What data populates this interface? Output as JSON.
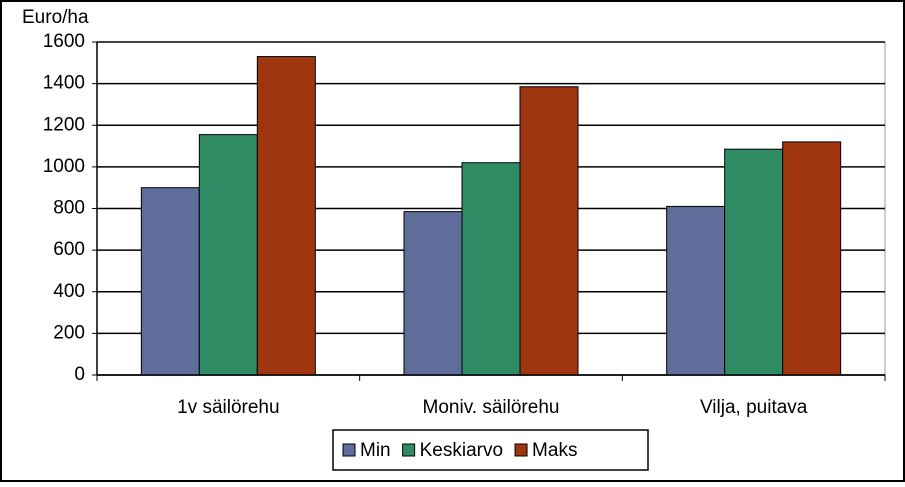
{
  "chart_data": {
    "type": "bar",
    "y_label": "Euro/ha",
    "categories": [
      "1v säilörehu",
      "Moniv. säilörehu",
      "Vilja, puitava"
    ],
    "series": [
      {
        "name": "Min",
        "color": "#5f6d9b",
        "values": [
          900,
          785,
          810
        ]
      },
      {
        "name": "Keskiarvo",
        "color": "#2f8b64",
        "values": [
          1155,
          1020,
          1085
        ]
      },
      {
        "name": "Maks",
        "color": "#a0360f",
        "values": [
          1530,
          1385,
          1120
        ]
      }
    ],
    "ylim": [
      0,
      1600
    ],
    "yticks": [
      0,
      200,
      400,
      600,
      800,
      1000,
      1200,
      1400,
      1600
    ],
    "grid": true,
    "legend": "bottom"
  }
}
